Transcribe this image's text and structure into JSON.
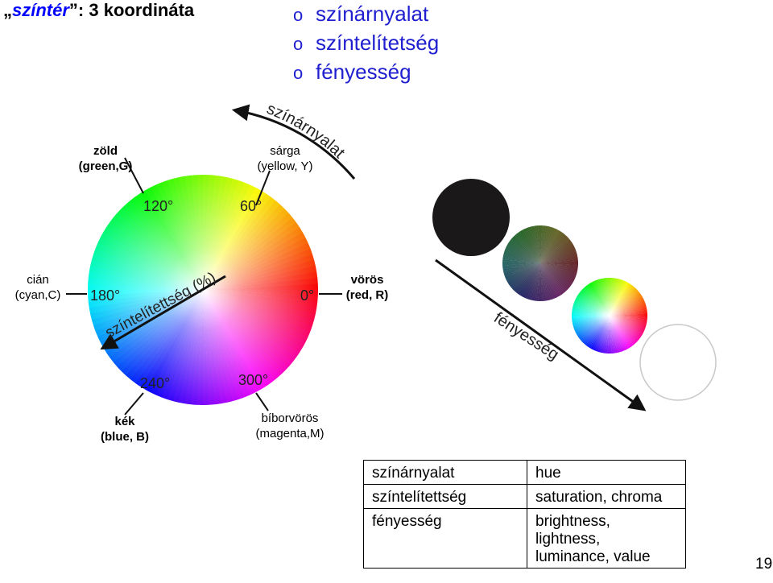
{
  "title": {
    "quote_open": "„",
    "highlight": "színtér",
    "quote_close": "”",
    "rest": ": 3 koordináta"
  },
  "bullets": [
    {
      "marker": "o",
      "text": "színárnyalat"
    },
    {
      "marker": "o",
      "text": "színtelítetség"
    },
    {
      "marker": "o",
      "text": "fényesség"
    }
  ],
  "wheel": {
    "hue_arrow_label": "színárnyalat",
    "saturation_label": "színtelítettség (%)",
    "degrees": {
      "d0": "0°",
      "d60": "60°",
      "d120": "120°",
      "d180": "180°",
      "d240": "240°",
      "d300": "300°"
    },
    "colors": {
      "green": {
        "name": "zöld",
        "sub": "(green,G)"
      },
      "yellow": {
        "name": "sárga",
        "sub": "(yellow, Y)"
      },
      "cyan": {
        "name": "cián",
        "sub": "(cyan,C)"
      },
      "red": {
        "name": "vörös",
        "sub": "(red, R)"
      },
      "blue": {
        "name": "kék",
        "sub": "(blue, B)"
      },
      "magenta": {
        "name": "bíborvörös",
        "sub": "(magenta,M)"
      }
    }
  },
  "brightness": {
    "label": "fényesség"
  },
  "table": {
    "rows": [
      {
        "hu": "színárnyalat",
        "en": [
          "hue"
        ]
      },
      {
        "hu": "színtelítettség",
        "en": [
          "saturation, chroma"
        ]
      },
      {
        "hu": "fényesség",
        "en": [
          "brightness,",
          "lightness,",
          "luminance, value"
        ]
      }
    ]
  },
  "page_number": "19"
}
